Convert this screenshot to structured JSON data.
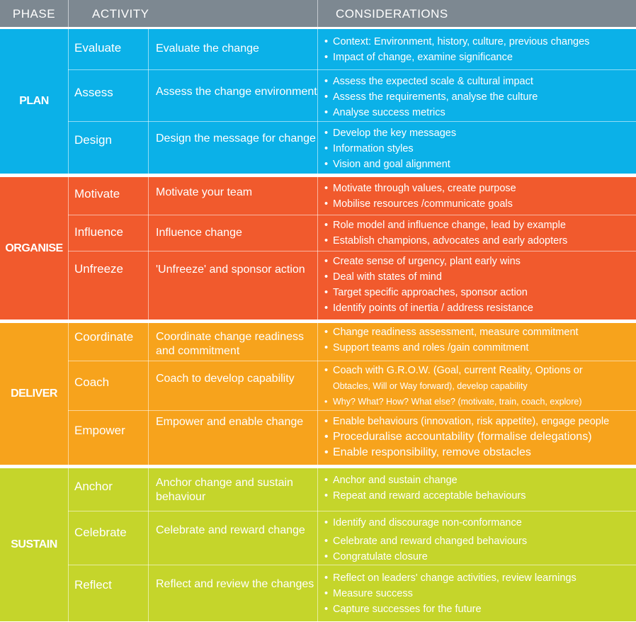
{
  "header": {
    "phase": "PHASE",
    "activity": "ACTIVITY",
    "considerations": "CONSIDERATIONS"
  },
  "phases": [
    {
      "name": "PLAN",
      "color": "#0bb1e8",
      "rows": [
        {
          "step": "Evaluate",
          "activity": "Evaluate the change",
          "considerations": [
            "Context: Environment, history, culture, previous changes",
            "Impact of change, examine significance"
          ]
        },
        {
          "step": "Assess",
          "activity": "Assess the change environment",
          "considerations": [
            "Assess the expected scale & cultural impact",
            "Assess the requirements, analyse the culture",
            "Analyse success metrics"
          ]
        },
        {
          "step": "Design",
          "activity": "Design the message for change",
          "considerations": [
            "Develop the key messages",
            "Information styles",
            "Vision and goal alignment"
          ]
        }
      ]
    },
    {
      "name": "ORGANISE",
      "color": "#f15a2d",
      "rows": [
        {
          "step": "Motivate",
          "activity": "Motivate your team",
          "considerations": [
            "Motivate through values, create purpose",
            "Mobilise resources /communicate goals"
          ]
        },
        {
          "step": "Influence",
          "activity": "Influence change",
          "considerations": [
            "Role model and influence change, lead by example",
            "Establish champions, advocates and early adopters"
          ]
        },
        {
          "step": "Unfreeze",
          "activity": "'Unfreeze' and sponsor action",
          "considerations": [
            "Create sense of urgency, plant early wins",
            "Deal with states of mind",
            "Target specific approaches, sponsor action",
            "Identify points of inertia / address resistance"
          ]
        }
      ]
    },
    {
      "name": "DELIVER",
      "color": "#f7a31c",
      "rows": [
        {
          "step": "Coordinate",
          "activity": "Coordinate change readiness and commitment",
          "considerations": [
            "Change readiness assessment, measure commitment",
            "Support teams and roles /gain commitment"
          ]
        },
        {
          "step": "Coach",
          "activity": "Coach to develop capability",
          "considerations": [
            "Coach with G.R.O.W. (Goal, current Reality, Options or",
            "Obtacles, Will or Way forward), develop capability",
            "Why? What? How? What else? (motivate,  train, coach, explore)"
          ]
        },
        {
          "step": "Empower",
          "activity": "Empower and enable change",
          "considerations": [
            "Enable behaviours (innovation, risk appetite), engage people",
            "Proceduralise accountability (formalise delegations)",
            "Enable responsibility, remove obstacles"
          ]
        }
      ]
    },
    {
      "name": "SUSTAIN",
      "color": "#c5d52b",
      "rows": [
        {
          "step": "Anchor",
          "activity": "Anchor change and sustain behaviour",
          "considerations": [
            "Anchor and sustain change",
            "Repeat and reward acceptable behaviours"
          ]
        },
        {
          "step": "Celebrate",
          "activity": "Celebrate and reward change",
          "considerations": [
            "Identify and discourage non-conformance",
            "Celebrate and reward changed behaviours",
            "Congratulate closure"
          ]
        },
        {
          "step": "Reflect",
          "activity": "Reflect and review the changes",
          "considerations": [
            "Reflect on leaders' change activities, review learnings",
            "Measure success",
            "Capture successes for the future"
          ]
        }
      ]
    }
  ]
}
